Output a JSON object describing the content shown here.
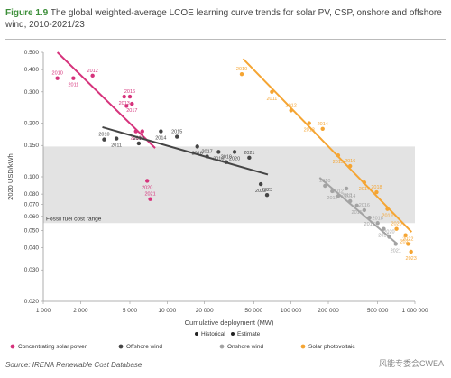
{
  "figure": {
    "label": "Figure 1.9",
    "title": "The global weighted-average LCOE learning curve trends for solar PV, CSP, onshore and offshore wind, 2010-2021/23",
    "source": "Source: IRENA Renewable Cost Database",
    "watermark": "风能专委会CWEA"
  },
  "colors": {
    "csp": "#d6337c",
    "offshore": "#454545",
    "onshore": "#a3a3a3",
    "pv": "#f5a533",
    "band": "#e3e3e3"
  },
  "chart_data": {
    "type": "scatter",
    "xscale": "log",
    "yscale": "log",
    "xlim": [
      1000,
      1000000
    ],
    "ylim": [
      0.02,
      0.5
    ],
    "xlabel": "Cumulative deployment (MW)",
    "ylabel": "2020 USD/kWh",
    "xticks": [
      1000,
      2000,
      5000,
      10000,
      20000,
      50000,
      100000,
      200000,
      500000,
      1000000
    ],
    "xtick_labels": [
      "1 000",
      "2 000",
      "5 000",
      "10 000",
      "20 000",
      "50 000",
      "100 000",
      "200 000",
      "500 000",
      "1 000 000"
    ],
    "yticks": [
      0.02,
      0.03,
      0.04,
      0.05,
      0.06,
      0.07,
      0.08,
      0.1,
      0.15,
      0.2,
      0.3,
      0.4,
      0.5
    ],
    "ytick_labels": [
      "0.020",
      "0.030",
      "0.040",
      "0.050",
      "0.060",
      "0.070",
      "0.080",
      "0.100",
      "0.150",
      "0.200",
      "0.300",
      "0.400",
      "0.500"
    ],
    "band": {
      "ymin": 0.055,
      "ymax": 0.148,
      "label": "Fossil fuel cost range"
    },
    "marker_legend": [
      {
        "label": "Historical",
        "style": "filled"
      },
      {
        "label": "Estimate",
        "style": "filled"
      }
    ],
    "series": [
      {
        "name": "Concentrating solar power",
        "color_key": "csp",
        "points": [
          {
            "x": 1300,
            "y": 0.358,
            "label": "2010"
          },
          {
            "x": 1750,
            "y": 0.358,
            "label": "2011"
          },
          {
            "x": 2500,
            "y": 0.37,
            "label": "2012"
          },
          {
            "x": 4500,
            "y": 0.282,
            "label": "2013"
          },
          {
            "x": 5000,
            "y": 0.282,
            "label": "2016"
          },
          {
            "x": 5200,
            "y": 0.257,
            "label": "2017"
          },
          {
            "x": 4700,
            "y": 0.25,
            "label": ""
          },
          {
            "x": 5600,
            "y": 0.18,
            "label": "2019"
          },
          {
            "x": 6300,
            "y": 0.18,
            "label": ""
          },
          {
            "x": 6900,
            "y": 0.095,
            "label": "2020"
          },
          {
            "x": 7300,
            "y": 0.075,
            "label": "2021"
          }
        ],
        "trend": [
          [
            1300,
            0.5
          ],
          [
            8000,
            0.145
          ]
        ]
      },
      {
        "name": "Offshore wind",
        "color_key": "offshore",
        "points": [
          {
            "x": 3100,
            "y": 0.162,
            "label": "2010"
          },
          {
            "x": 3900,
            "y": 0.164,
            "label": "2011"
          },
          {
            "x": 5900,
            "y": 0.154,
            "label": "2012"
          },
          {
            "x": 8900,
            "y": 0.18,
            "label": "2014"
          },
          {
            "x": 12000,
            "y": 0.168,
            "label": "2015"
          },
          {
            "x": 17500,
            "y": 0.148,
            "label": "2016"
          },
          {
            "x": 21000,
            "y": 0.13,
            "label": "2017"
          },
          {
            "x": 26000,
            "y": 0.138,
            "label": "2018"
          },
          {
            "x": 30000,
            "y": 0.121,
            "label": "2019"
          },
          {
            "x": 35000,
            "y": 0.138,
            "label": "2020"
          },
          {
            "x": 46000,
            "y": 0.128,
            "label": "2021"
          },
          {
            "x": 57000,
            "y": 0.091,
            "label": "2022"
          },
          {
            "x": 64000,
            "y": 0.079,
            "label": "2023"
          }
        ],
        "trend": [
          [
            3000,
            0.19
          ],
          [
            65000,
            0.103
          ]
        ]
      },
      {
        "name": "Onshore wind",
        "color_key": "onshore",
        "points": [
          {
            "x": 188000,
            "y": 0.089,
            "label": "2010"
          },
          {
            "x": 215000,
            "y": 0.083,
            "label": "2011"
          },
          {
            "x": 240000,
            "y": 0.078,
            "label": "2012"
          },
          {
            "x": 280000,
            "y": 0.086,
            "label": "2013"
          },
          {
            "x": 300000,
            "y": 0.073,
            "label": "2014"
          },
          {
            "x": 340000,
            "y": 0.069,
            "label": "2015"
          },
          {
            "x": 390000,
            "y": 0.065,
            "label": "2016"
          },
          {
            "x": 430000,
            "y": 0.059,
            "label": "2017"
          },
          {
            "x": 500000,
            "y": 0.055,
            "label": "2018"
          },
          {
            "x": 560000,
            "y": 0.051,
            "label": "2019"
          },
          {
            "x": 620000,
            "y": 0.046,
            "label": "2020"
          },
          {
            "x": 700000,
            "y": 0.042,
            "label": "2021"
          }
        ],
        "trend": [
          [
            170000,
            0.099
          ],
          [
            720000,
            0.042
          ]
        ]
      },
      {
        "name": "Solar photovoltaic",
        "color_key": "pv",
        "points": [
          {
            "x": 40000,
            "y": 0.377,
            "label": "2010"
          },
          {
            "x": 70000,
            "y": 0.3,
            "label": "2011"
          },
          {
            "x": 100000,
            "y": 0.236,
            "label": "2012"
          },
          {
            "x": 140000,
            "y": 0.2,
            "label": "2013"
          },
          {
            "x": 180000,
            "y": 0.186,
            "label": "2014"
          },
          {
            "x": 240000,
            "y": 0.132,
            "label": "2015"
          },
          {
            "x": 300000,
            "y": 0.115,
            "label": "2016"
          },
          {
            "x": 390000,
            "y": 0.093,
            "label": "2017"
          },
          {
            "x": 490000,
            "y": 0.082,
            "label": "2018"
          },
          {
            "x": 600000,
            "y": 0.066,
            "label": "2019"
          },
          {
            "x": 710000,
            "y": 0.051,
            "label": "2020"
          },
          {
            "x": 840000,
            "y": 0.047,
            "label": "2021"
          },
          {
            "x": 880000,
            "y": 0.042,
            "label": "2022"
          },
          {
            "x": 930000,
            "y": 0.038,
            "label": "2023"
          }
        ],
        "trend": [
          [
            41000,
            0.46
          ],
          [
            940000,
            0.049
          ]
        ]
      }
    ],
    "legend_placement": "bottom",
    "grid": false
  }
}
